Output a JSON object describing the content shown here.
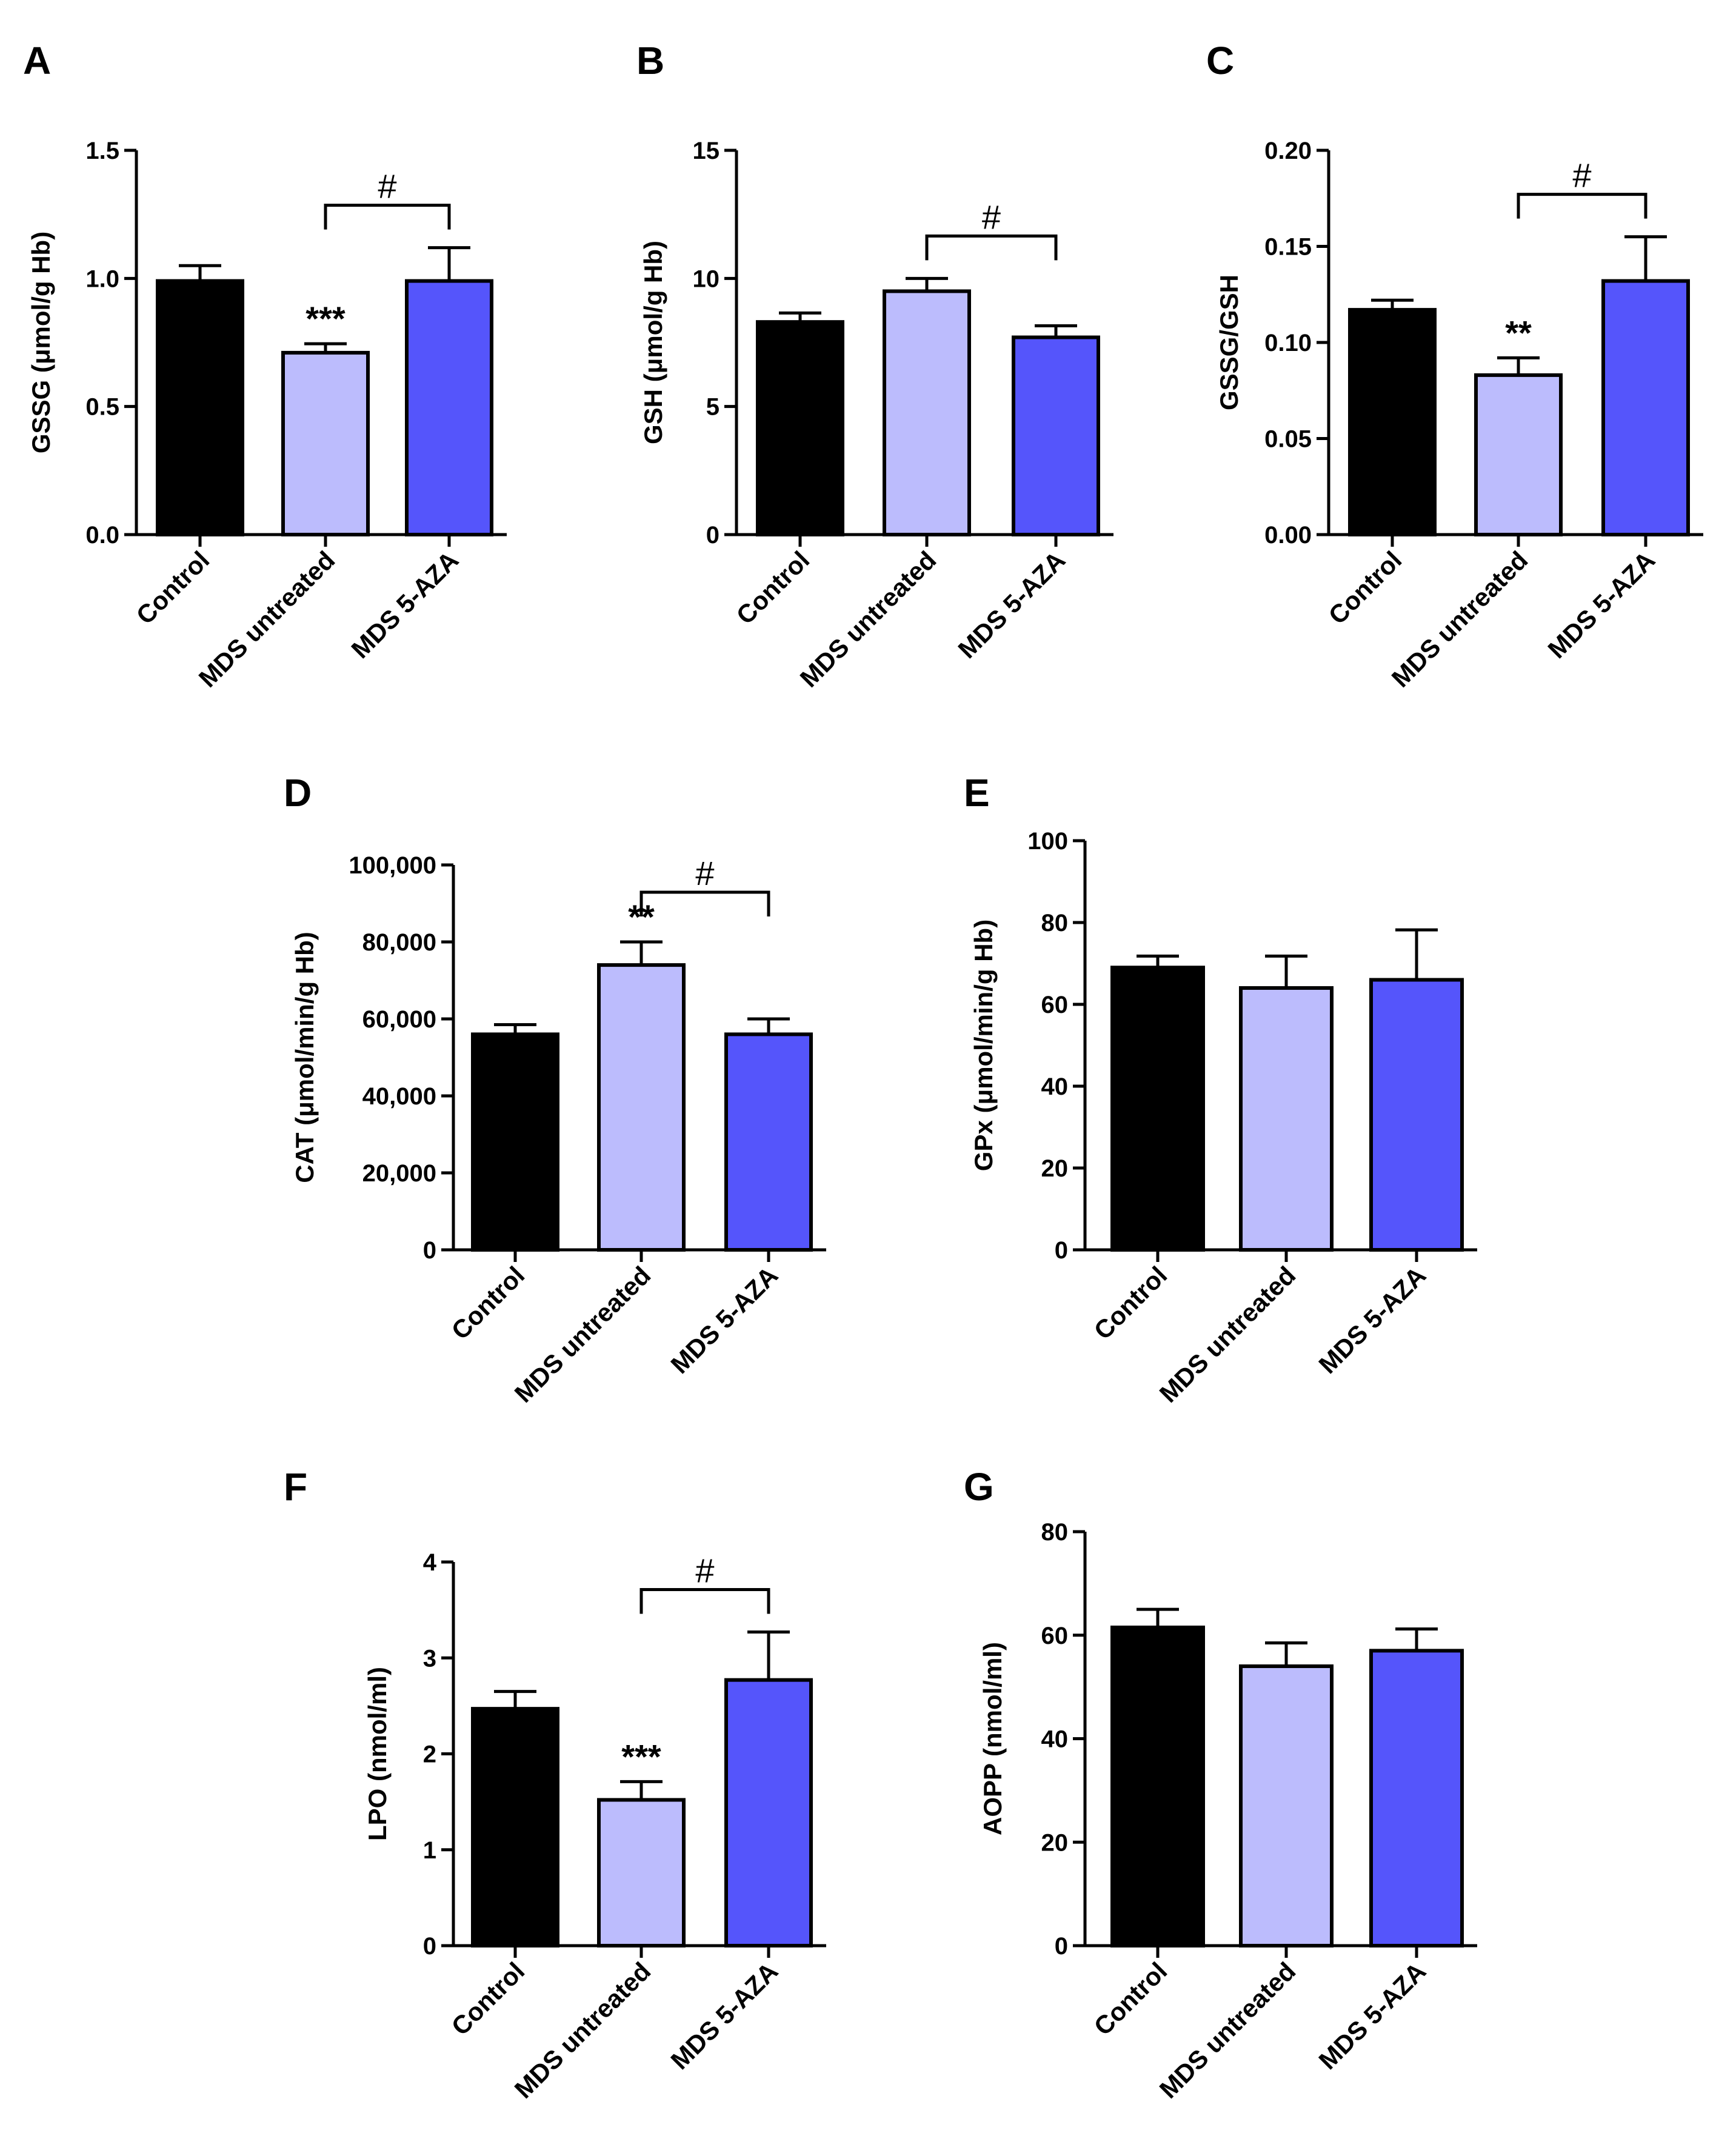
{
  "chart_data": [
    {
      "panel": "A",
      "type": "bar",
      "categories": [
        "Control",
        "MDS untreated",
        "MDS 5-AZA"
      ],
      "values": [
        0.99,
        0.71,
        0.99
      ],
      "errors": [
        0.06,
        0.035,
        0.13
      ],
      "ylabel": "GSSG (μmol/g Hb)",
      "ylim": [
        0,
        1.5
      ],
      "ticks": [
        "0.0",
        "0.5",
        "1.0",
        "1.5"
      ],
      "tick_values": [
        0,
        0.5,
        1.0,
        1.5
      ],
      "stars": {
        "index": 1,
        "text": "***"
      },
      "bracket": {
        "from": 1,
        "to": 2,
        "text": "#"
      }
    },
    {
      "panel": "B",
      "type": "bar",
      "categories": [
        "Control",
        "MDS untreated",
        "MDS 5-AZA"
      ],
      "values": [
        8.3,
        9.5,
        7.7
      ],
      "errors": [
        0.35,
        0.5,
        0.45
      ],
      "ylabel": "GSH (μmol/g Hb)",
      "ylim": [
        0,
        15
      ],
      "ticks": [
        "0",
        "5",
        "10",
        "15"
      ],
      "tick_values": [
        0,
        5,
        10,
        15
      ],
      "stars": null,
      "bracket": {
        "from": 1,
        "to": 2,
        "text": "#"
      }
    },
    {
      "panel": "C",
      "type": "bar",
      "categories": [
        "Control",
        "MDS untreated",
        "MDS 5-AZA"
      ],
      "values": [
        0.117,
        0.083,
        0.132
      ],
      "errors": [
        0.005,
        0.009,
        0.023
      ],
      "ylabel": "GSSG/GSH",
      "ylim": [
        0,
        0.2
      ],
      "ticks": [
        "0.00",
        "0.05",
        "0.10",
        "0.15",
        "0.20"
      ],
      "tick_values": [
        0,
        0.05,
        0.1,
        0.15,
        0.2
      ],
      "stars": {
        "index": 1,
        "text": "**"
      },
      "bracket": {
        "from": 1,
        "to": 2,
        "text": "#"
      }
    },
    {
      "panel": "D",
      "type": "bar",
      "categories": [
        "Control",
        "MDS untreated",
        "MDS 5-AZA"
      ],
      "values": [
        56000,
        74000,
        56000
      ],
      "errors": [
        2500,
        6000,
        4000
      ],
      "ylabel": "CAT (μmol/min/g Hb)",
      "ylim": [
        0,
        100000
      ],
      "ticks": [
        "0",
        "20,000",
        "40,000",
        "60,000",
        "80,000",
        "100,000"
      ],
      "tick_values": [
        0,
        20000,
        40000,
        60000,
        80000,
        100000
      ],
      "stars": {
        "index": 1,
        "text": "**"
      },
      "bracket": {
        "from": 1,
        "to": 2,
        "text": "#"
      }
    },
    {
      "panel": "E",
      "type": "bar",
      "categories": [
        "Control",
        "MDS untreated",
        "MDS 5-AZA"
      ],
      "values": [
        69,
        64,
        66
      ],
      "errors": [
        2.8,
        7.8,
        12.2
      ],
      "ylabel": "GPx (μmol/min/g Hb)",
      "ylim": [
        0,
        100
      ],
      "ticks": [
        "0",
        "20",
        "40",
        "60",
        "80",
        "100"
      ],
      "tick_values": [
        0,
        20,
        40,
        60,
        80,
        100
      ],
      "stars": null,
      "bracket": null
    },
    {
      "panel": "F",
      "type": "bar",
      "categories": [
        "Control",
        "MDS untreated",
        "MDS 5-AZA"
      ],
      "values": [
        2.47,
        1.52,
        2.77
      ],
      "errors": [
        0.18,
        0.19,
        0.5
      ],
      "ylabel": "LPO (nmol/ml)",
      "ylim": [
        0,
        4
      ],
      "ticks": [
        "0",
        "1",
        "2",
        "3",
        "4"
      ],
      "tick_values": [
        0,
        1,
        2,
        3,
        4
      ],
      "stars": {
        "index": 1,
        "text": "***"
      },
      "bracket": {
        "from": 1,
        "to": 2,
        "text": "#"
      }
    },
    {
      "panel": "G",
      "type": "bar",
      "categories": [
        "Control",
        "MDS untreated",
        "MDS 5-AZA"
      ],
      "values": [
        61.5,
        54,
        57
      ],
      "errors": [
        3.5,
        4.5,
        4.2
      ],
      "ylabel": "AOPP (nmol/ml)",
      "ylim": [
        0,
        80
      ],
      "ticks": [
        "0",
        "20",
        "40",
        "60",
        "80"
      ],
      "tick_values": [
        0,
        20,
        40,
        60,
        80
      ],
      "stars": null,
      "bracket": null
    }
  ],
  "colors": {
    "control": "#000000",
    "mds_untreated": "#bcbcfd",
    "mds_5aza": "#5555fb",
    "axis": "#000000"
  }
}
